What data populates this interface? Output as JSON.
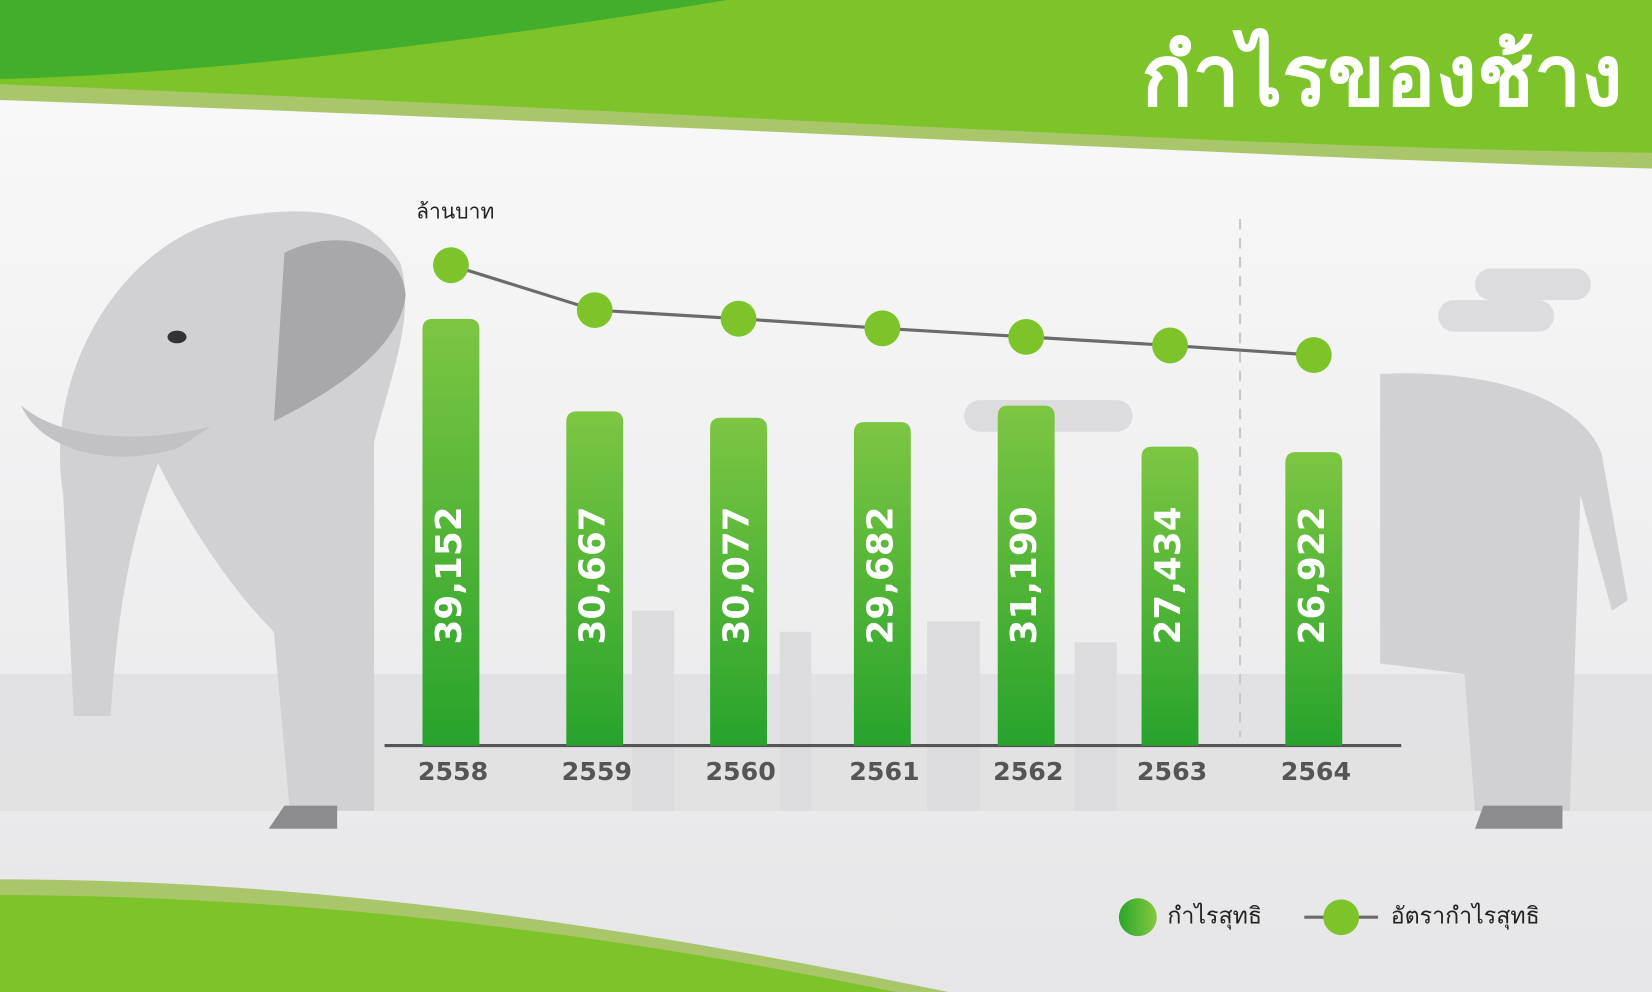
{
  "chart_data": {
    "type": "bar",
    "title": "กำไรของช้าง",
    "unit_label": "ล้านบาท",
    "categories": [
      "2558",
      "2559",
      "2560",
      "2561",
      "2562",
      "2563",
      "2564"
    ],
    "series": [
      {
        "name": "กำไรสุทธิ",
        "type": "bar",
        "color": "#3aab2e",
        "values": [
          39152,
          30667,
          30077,
          29682,
          31190,
          27434,
          26922
        ],
        "value_labels": [
          "39,152",
          "30,667",
          "30,077",
          "29,682",
          "31,190",
          "27,434",
          "26,922"
        ]
      },
      {
        "name": "อัตรากำไรสุทธิ",
        "type": "line",
        "axis": "y2",
        "color": "#7dc42a",
        "line_color": "#6b6b6b",
        "values": [
          44.9,
          40.7,
          39.9,
          39.0,
          38.2,
          37.4,
          36.5
        ]
      }
    ],
    "ylim": [
      0,
      40000
    ],
    "y2lim": [
      0,
      50
    ]
  }
}
